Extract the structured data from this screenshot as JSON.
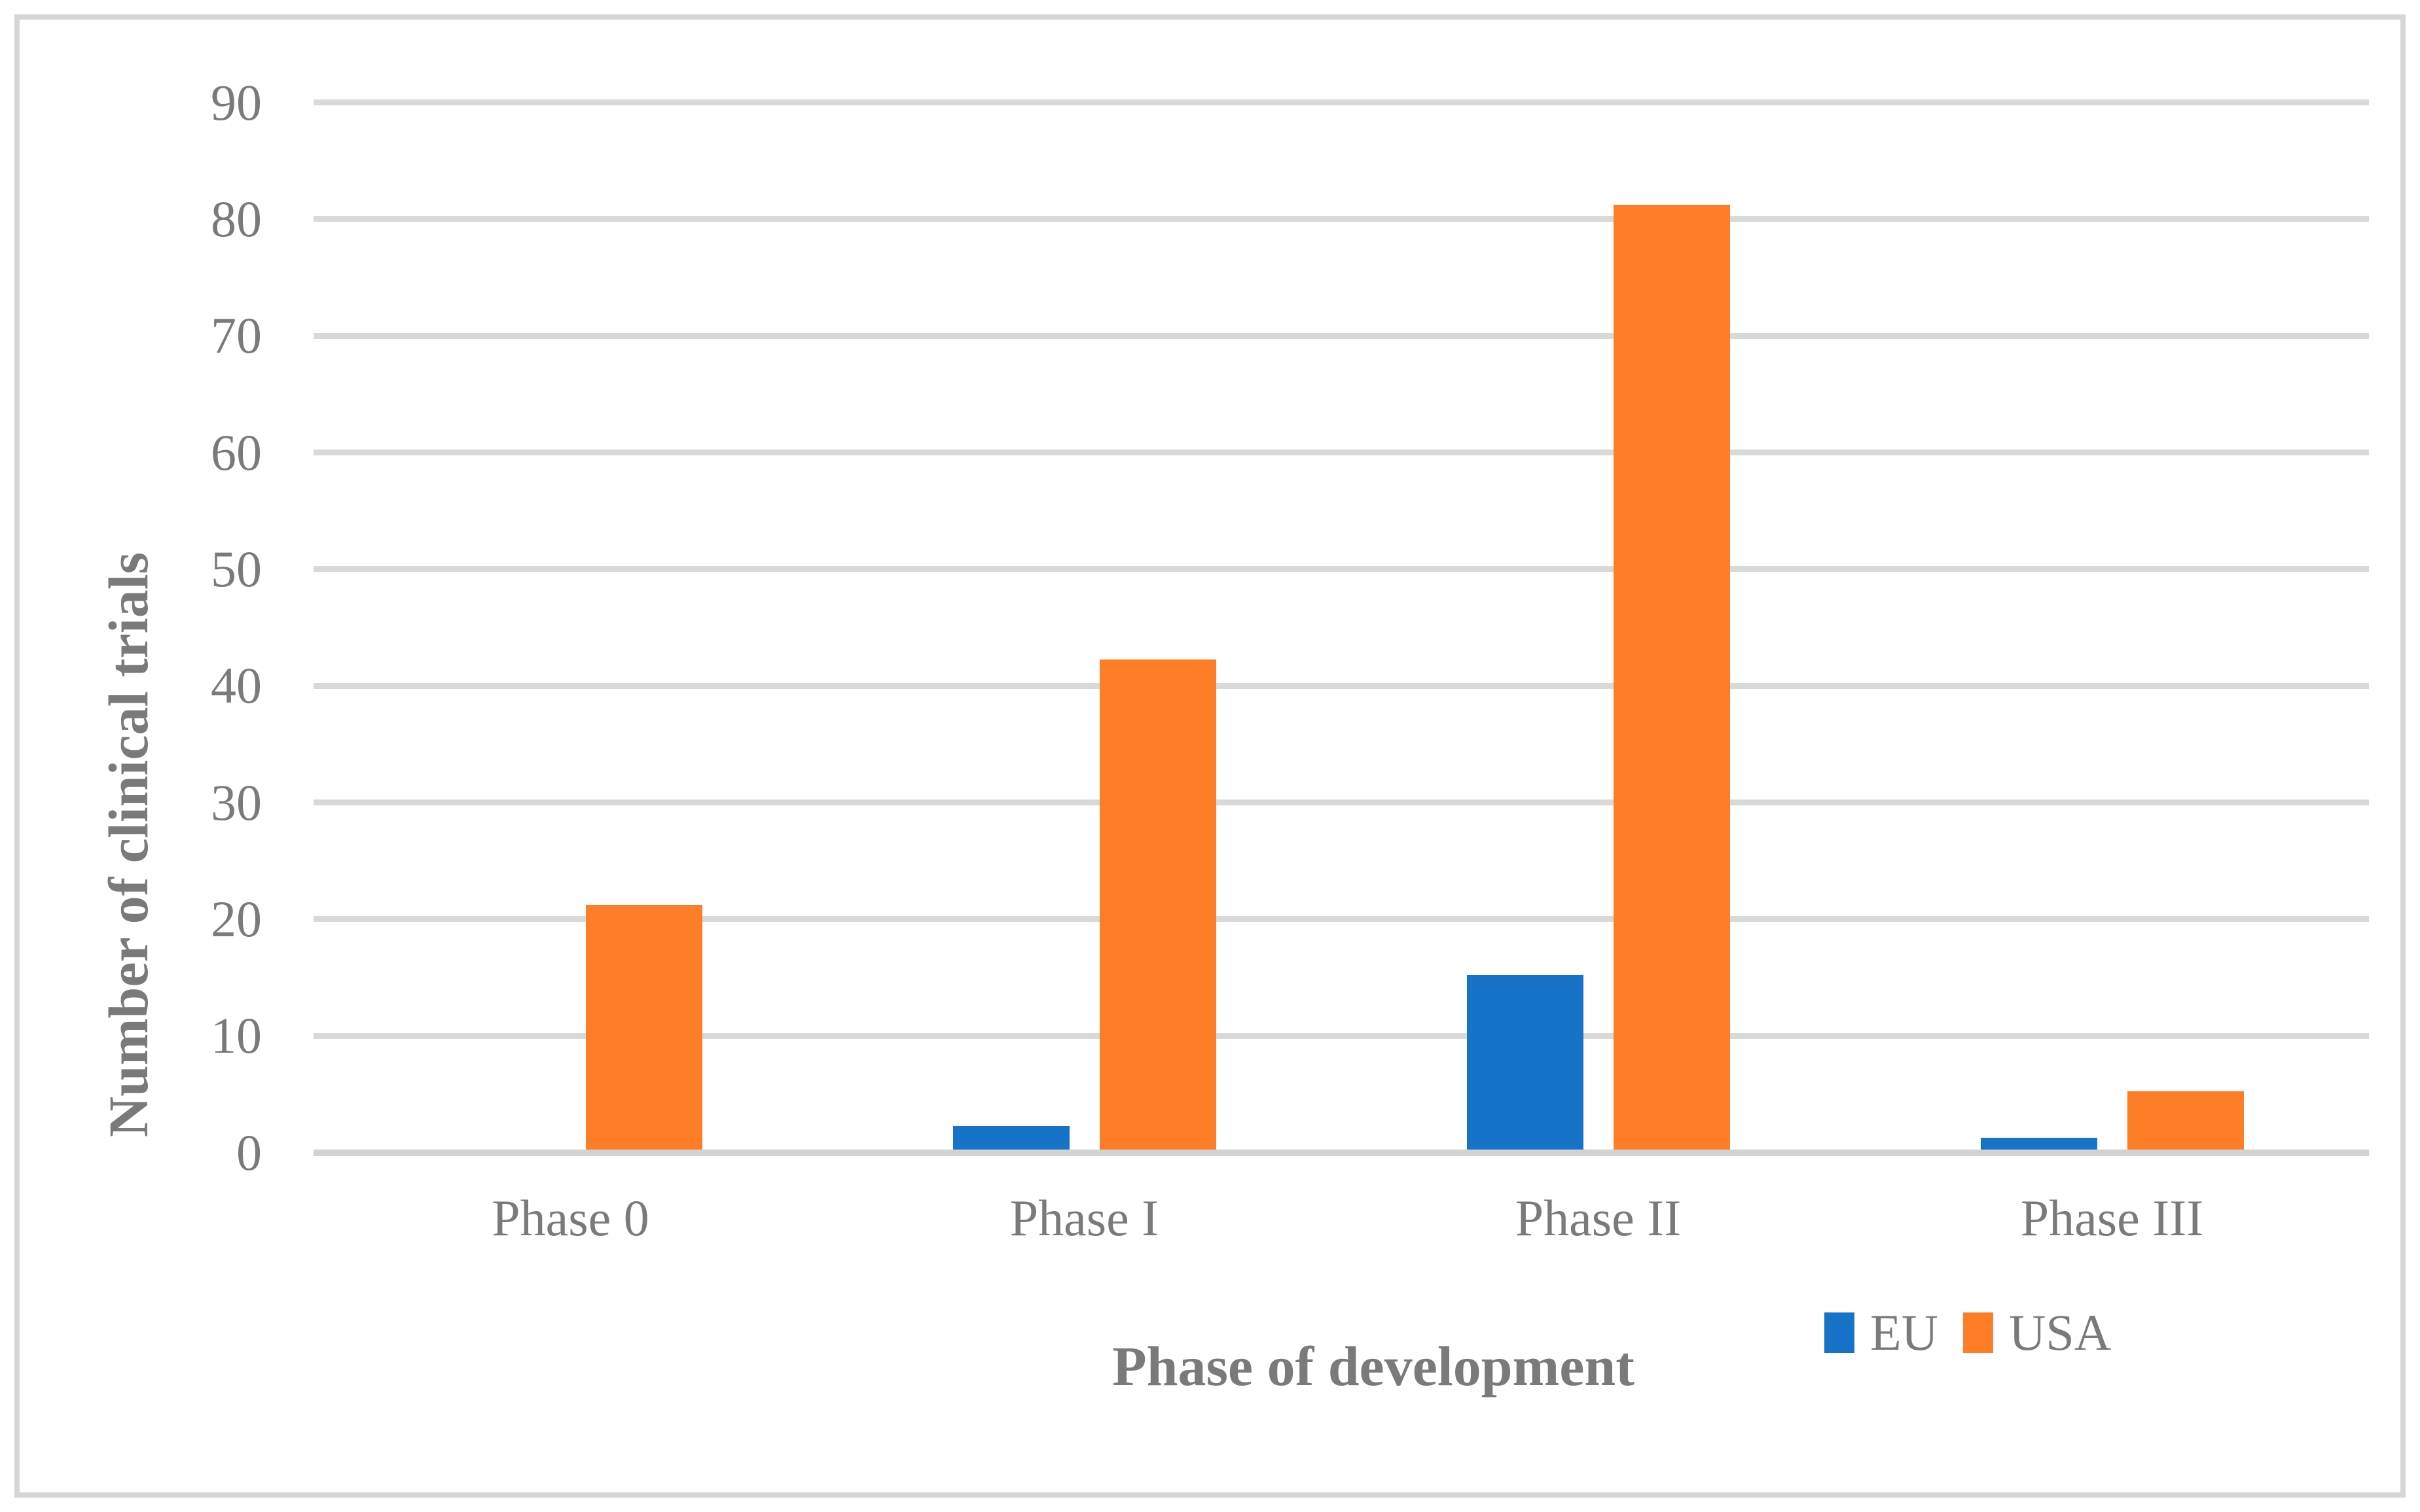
{
  "chart_data": {
    "type": "bar",
    "title": "",
    "categories": [
      "Phase 0",
      "Phase I",
      "Phase II",
      "Phase III"
    ],
    "series": [
      {
        "name": "EU",
        "color": "#1773c8",
        "values": [
          0,
          2,
          15,
          1
        ]
      },
      {
        "name": "USA",
        "color": "#fe7d27",
        "values": [
          21,
          42,
          81,
          5
        ]
      }
    ],
    "xlabel": "Phase of development",
    "ylabel": "Number of clinical trials",
    "ylim": [
      0,
      90
    ],
    "yticks": [
      0,
      10,
      20,
      30,
      40,
      50,
      60,
      70,
      80,
      90
    ],
    "grid": "horizontal",
    "gridline_color": "#d9d9d9",
    "axis_line_color": "#d2d2d2",
    "axis_text_color": "#7a7a7a",
    "legend_position": "bottom-right",
    "legend_labels": [
      "EU",
      "USA"
    ]
  }
}
